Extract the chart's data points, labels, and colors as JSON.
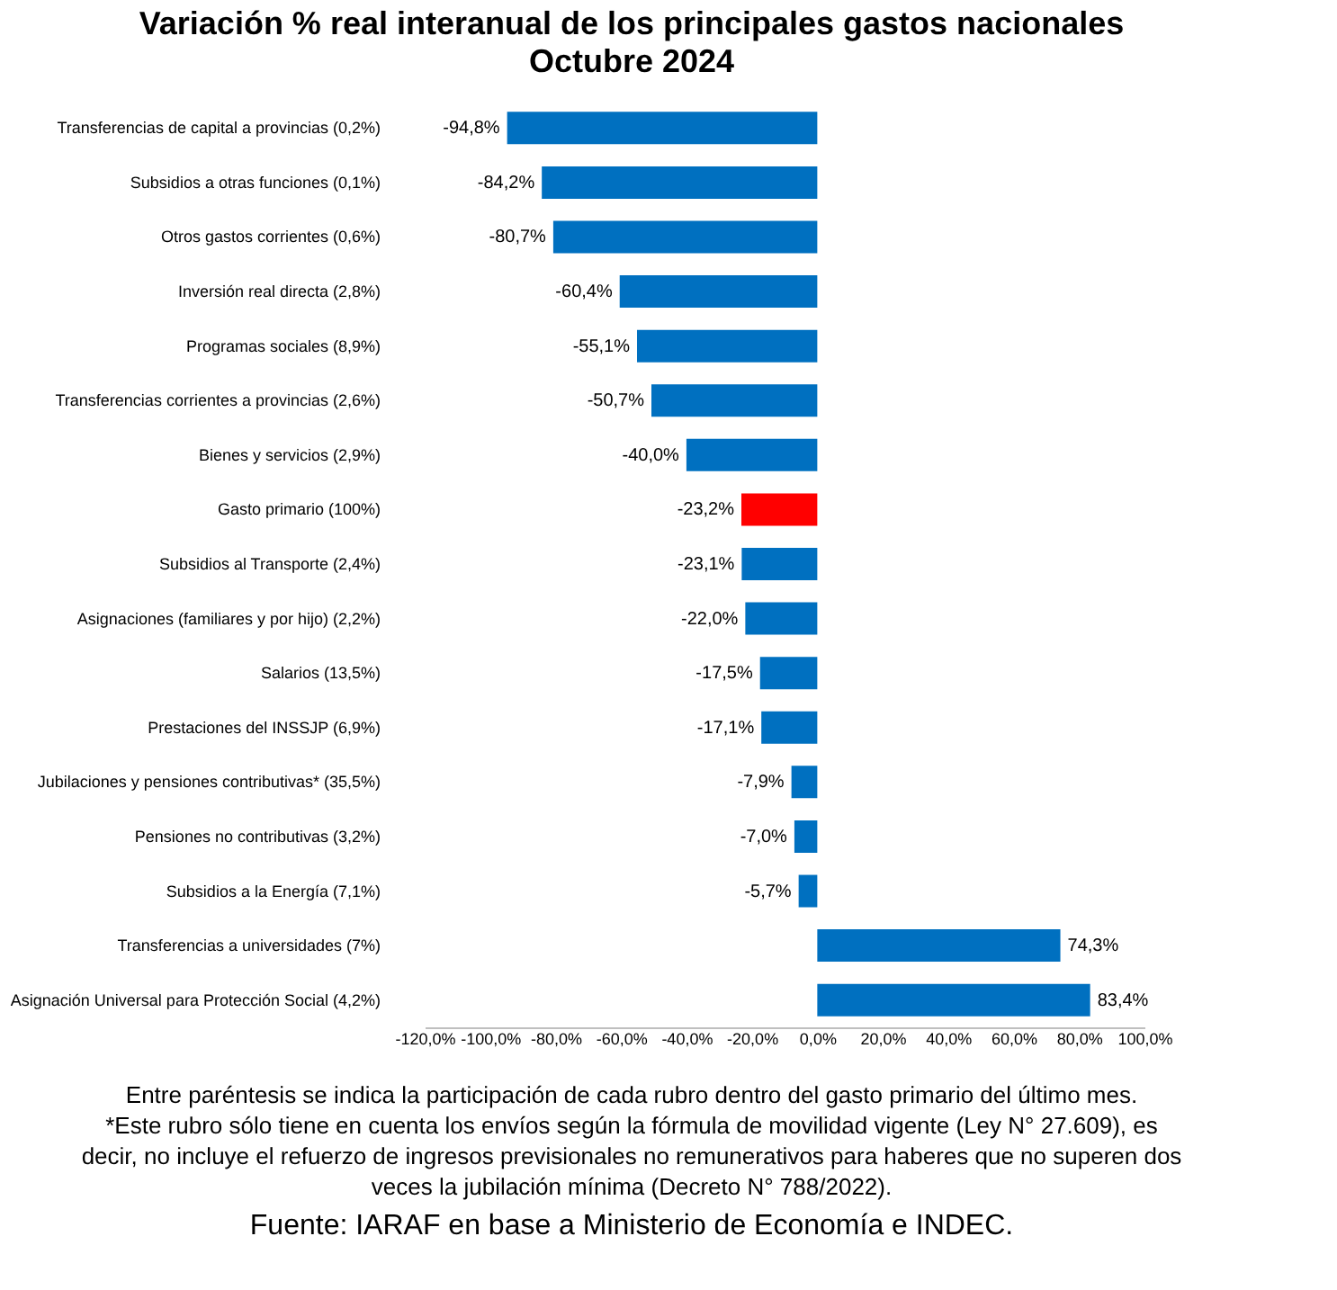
{
  "chart_data": {
    "type": "bar",
    "orientation": "horizontal",
    "title": "Variación % real interanual de los principales gastos nacionales",
    "subtitle": "Octubre 2024",
    "categories": [
      "Transferencias de capital a provincias (0,2%)",
      "Subsidios a otras funciones (0,1%)",
      "Otros gastos corrientes (0,6%)",
      "Inversión real directa (2,8%)",
      "Programas sociales (8,9%)",
      "Transferencias corrientes a provincias (2,6%)",
      "Bienes y servicios (2,9%)",
      "Gasto primario (100%)",
      "Subsidios al Transporte (2,4%)",
      "Asignaciones (familiares y por hijo) (2,2%)",
      "Salarios (13,5%)",
      "Prestaciones del INSSJP (6,9%)",
      "Jubilaciones y pensiones contributivas* (35,5%)",
      "Pensiones no contributivas (3,2%)",
      "Subsidios a la Energía (7,1%)",
      "Transferencias a universidades (7%)",
      "Asignación Universal para Protección Social (4,2%)"
    ],
    "values": [
      -94.8,
      -84.2,
      -80.7,
      -60.4,
      -55.1,
      -50.7,
      -40.0,
      -23.2,
      -23.1,
      -22.0,
      -17.5,
      -17.1,
      -7.9,
      -7.0,
      -5.7,
      74.3,
      83.4
    ],
    "value_labels": [
      "-94,8%",
      "-84,2%",
      "-80,7%",
      "-60,4%",
      "-55,1%",
      "-50,7%",
      "-40,0%",
      "-23,2%",
      "-23,1%",
      "-22,0%",
      "-17,5%",
      "-17,1%",
      "-7,9%",
      "-7,0%",
      "-5,7%",
      "74,3%",
      "83,4%"
    ],
    "colors": [
      "#0070c0",
      "#0070c0",
      "#0070c0",
      "#0070c0",
      "#0070c0",
      "#0070c0",
      "#0070c0",
      "#ff0000",
      "#0070c0",
      "#0070c0",
      "#0070c0",
      "#0070c0",
      "#0070c0",
      "#0070c0",
      "#0070c0",
      "#0070c0",
      "#0070c0"
    ],
    "xlim": [
      -120,
      100
    ],
    "xticks": [
      {
        "value": -120,
        "label": "-120,0%"
      },
      {
        "value": -100,
        "label": "-100,0%"
      },
      {
        "value": -80,
        "label": "-80,0%"
      },
      {
        "value": -60,
        "label": "-60,0%"
      },
      {
        "value": -40,
        "label": "-40,0%"
      },
      {
        "value": -20,
        "label": "-20,0%"
      },
      {
        "value": 0,
        "label": "0,0%"
      },
      {
        "value": 20,
        "label": "20,0%"
      },
      {
        "value": 40,
        "label": "40,0%"
      },
      {
        "value": 60,
        "label": "60,0%"
      },
      {
        "value": 80,
        "label": "80,0%"
      },
      {
        "value": 100,
        "label": "100,0%"
      }
    ],
    "grid": false,
    "annotations": [
      "Entre paréntesis se indica la participación de cada rubro dentro del gasto primario del último mes.",
      "*Este rubro sólo tiene en cuenta los envíos según la fórmula de movilidad vigente (Ley N° 27.609), es",
      "decir, no incluye el refuerzo de ingresos previsionales no remunerativos para haberes que no superen dos",
      "veces la jubilación mínima (Decreto N° 788/2022).",
      "Fuente: IARAF en base a Ministerio de Economía e INDEC."
    ]
  }
}
